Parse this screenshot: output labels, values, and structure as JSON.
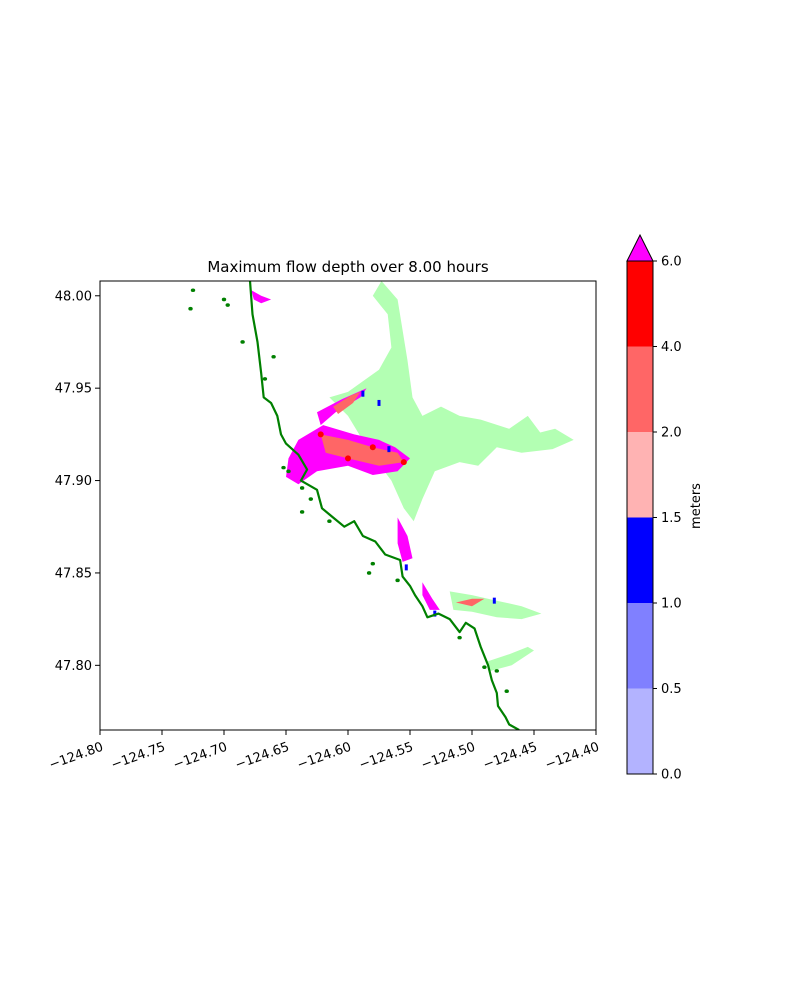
{
  "chart_data": {
    "type": "heatmap",
    "title": "Maximum flow depth over 8.00 hours",
    "xlabel": "",
    "ylabel": "",
    "xlim": [
      -124.8,
      -124.4
    ],
    "ylim": [
      47.765,
      48.008
    ],
    "xticks": [
      -124.8,
      -124.75,
      -124.7,
      -124.65,
      -124.6,
      -124.55,
      -124.5,
      -124.45,
      -124.4
    ],
    "xtick_labels": [
      "−124.80",
      "−124.75",
      "−124.70",
      "−124.65",
      "−124.60",
      "−124.55",
      "−124.50",
      "−124.45",
      "−124.40"
    ],
    "yticks": [
      47.8,
      47.85,
      47.9,
      47.95,
      48.0
    ],
    "ytick_labels": [
      "47.80",
      "47.85",
      "47.90",
      "47.95",
      "48.00"
    ],
    "grid": false,
    "colorbar": {
      "label": "meters",
      "levels": [
        0.0,
        0.5,
        1.0,
        1.5,
        2.0,
        4.0,
        6.0
      ],
      "level_labels": [
        "0.0",
        "0.5",
        "1.0",
        "1.5",
        "2.0",
        "4.0",
        "6.0"
      ],
      "colors": [
        "#b3b3ff",
        "#8080ff",
        "#0000ff",
        "#ffb3b3",
        "#ff6666",
        "#ff0000"
      ],
      "extend_max_color": "#ff00ff",
      "extend": "max"
    },
    "layer_colors": {
      "dry_land_wet": "#b3ffb3",
      "coastline": "#008000",
      "max_depth": "#ff00ff",
      "mid_depth": "#ff6666",
      "high_depth": "#ff0000",
      "low_depth": "#0000ff"
    },
    "coastline": [
      [
        -124.679,
        48.008
      ],
      [
        -124.677,
        47.99
      ],
      [
        -124.673,
        47.975
      ],
      [
        -124.67,
        47.958
      ],
      [
        -124.668,
        47.945
      ],
      [
        -124.662,
        47.942
      ],
      [
        -124.657,
        47.935
      ],
      [
        -124.654,
        47.925
      ],
      [
        -124.65,
        47.92
      ],
      [
        -124.64,
        47.914
      ],
      [
        -124.633,
        47.906
      ],
      [
        -124.638,
        47.9
      ],
      [
        -124.625,
        47.895
      ],
      [
        -124.621,
        47.885
      ],
      [
        -124.612,
        47.88
      ],
      [
        -124.603,
        47.875
      ],
      [
        -124.595,
        47.878
      ],
      [
        -124.588,
        47.87
      ],
      [
        -124.578,
        47.867
      ],
      [
        -124.57,
        47.86
      ],
      [
        -124.558,
        47.857
      ],
      [
        -124.556,
        47.848
      ],
      [
        -124.55,
        47.843
      ],
      [
        -124.546,
        47.838
      ],
      [
        -124.54,
        47.832
      ],
      [
        -124.536,
        47.826
      ],
      [
        -124.527,
        47.828
      ],
      [
        -124.518,
        47.825
      ],
      [
        -124.51,
        47.818
      ],
      [
        -124.505,
        47.823
      ],
      [
        -124.498,
        47.82
      ],
      [
        -124.493,
        47.81
      ],
      [
        -124.487,
        47.8
      ],
      [
        -124.484,
        47.792
      ],
      [
        -124.48,
        47.785
      ],
      [
        -124.479,
        47.778
      ],
      [
        -124.473,
        47.772
      ],
      [
        -124.47,
        47.768
      ],
      [
        -124.462,
        47.765
      ]
    ],
    "wet_region": [
      [
        -124.573,
        48.008
      ],
      [
        -124.56,
        47.998
      ],
      [
        -124.552,
        47.965
      ],
      [
        -124.548,
        47.945
      ],
      [
        -124.54,
        47.935
      ],
      [
        -124.525,
        47.94
      ],
      [
        -124.51,
        47.935
      ],
      [
        -124.493,
        47.933
      ],
      [
        -124.47,
        47.928
      ],
      [
        -124.455,
        47.935
      ],
      [
        -124.445,
        47.926
      ],
      [
        -124.433,
        47.928
      ],
      [
        -124.418,
        47.922
      ],
      [
        -124.435,
        47.917
      ],
      [
        -124.46,
        47.915
      ],
      [
        -124.48,
        47.918
      ],
      [
        -124.495,
        47.908
      ],
      [
        -124.51,
        47.91
      ],
      [
        -124.53,
        47.905
      ],
      [
        -124.54,
        47.89
      ],
      [
        -124.547,
        47.878
      ],
      [
        -124.555,
        47.885
      ],
      [
        -124.565,
        47.9
      ],
      [
        -124.582,
        47.915
      ],
      [
        -124.6,
        47.935
      ],
      [
        -124.615,
        47.945
      ],
      [
        -124.6,
        47.948
      ],
      [
        -124.575,
        47.96
      ],
      [
        -124.565,
        47.972
      ],
      [
        -124.568,
        47.99
      ],
      [
        -124.58,
        48.0
      ]
    ],
    "wet_lower_1": [
      [
        -124.518,
        47.84
      ],
      [
        -124.5,
        47.838
      ],
      [
        -124.48,
        47.835
      ],
      [
        -124.46,
        47.832
      ],
      [
        -124.444,
        47.828
      ],
      [
        -124.46,
        47.825
      ],
      [
        -124.48,
        47.826
      ],
      [
        -124.5,
        47.829
      ],
      [
        -124.515,
        47.83
      ]
    ],
    "wet_lower_2": [
      [
        -124.488,
        47.802
      ],
      [
        -124.47,
        47.806
      ],
      [
        -124.455,
        47.81
      ],
      [
        -124.45,
        47.808
      ],
      [
        -124.468,
        47.8
      ],
      [
        -124.485,
        47.797
      ]
    ],
    "max_region_1": [
      [
        -124.64,
        47.922
      ],
      [
        -124.62,
        47.93
      ],
      [
        -124.595,
        47.925
      ],
      [
        -124.575,
        47.922
      ],
      [
        -124.562,
        47.918
      ],
      [
        -124.55,
        47.912
      ],
      [
        -124.56,
        47.905
      ],
      [
        -124.58,
        47.903
      ],
      [
        -124.6,
        47.908
      ],
      [
        -124.625,
        47.905
      ],
      [
        -124.64,
        47.898
      ],
      [
        -124.65,
        47.902
      ],
      [
        -124.648,
        47.912
      ]
    ],
    "max_region_2": [
      [
        -124.625,
        47.937
      ],
      [
        -124.605,
        47.944
      ],
      [
        -124.585,
        47.95
      ],
      [
        -124.59,
        47.945
      ],
      [
        -124.61,
        47.937
      ],
      [
        -124.622,
        47.93
      ]
    ],
    "max_region_3": [
      [
        -124.56,
        47.88
      ],
      [
        -124.552,
        47.87
      ],
      [
        -124.548,
        47.858
      ],
      [
        -124.556,
        47.856
      ],
      [
        -124.56,
        47.866
      ]
    ],
    "max_region_4": [
      [
        -124.54,
        47.845
      ],
      [
        -124.532,
        47.836
      ],
      [
        -124.526,
        47.83
      ],
      [
        -124.534,
        47.83
      ],
      [
        -124.54,
        47.838
      ]
    ],
    "max_region_5": [
      [
        -124.678,
        48.003
      ],
      [
        -124.67,
        48.0
      ],
      [
        -124.662,
        47.998
      ],
      [
        -124.67,
        47.996
      ],
      [
        -124.676,
        47.998
      ]
    ],
    "red_region_1": [
      [
        -124.622,
        47.925
      ],
      [
        -124.6,
        47.922
      ],
      [
        -124.58,
        47.918
      ],
      [
        -124.56,
        47.915
      ],
      [
        -124.555,
        47.91
      ],
      [
        -124.575,
        47.908
      ],
      [
        -124.6,
        47.912
      ],
      [
        -124.618,
        47.915
      ]
    ],
    "red_region_2": [
      [
        -124.612,
        47.94
      ],
      [
        -124.598,
        47.946
      ],
      [
        -124.59,
        47.948
      ],
      [
        -124.596,
        47.942
      ],
      [
        -124.608,
        47.936
      ]
    ],
    "red_region_3": [
      [
        -124.513,
        47.834
      ],
      [
        -124.5,
        47.836
      ],
      [
        -124.49,
        47.836
      ],
      [
        -124.5,
        47.832
      ]
    ],
    "blue_bits": [
      [
        -124.588,
        47.947
      ],
      [
        -124.575,
        47.942
      ],
      [
        -124.567,
        47.917
      ],
      [
        -124.553,
        47.853
      ],
      [
        -124.53,
        47.828
      ],
      [
        -124.482,
        47.835
      ]
    ],
    "islets": [
      [
        -124.725,
        48.003
      ],
      [
        -124.727,
        47.993
      ],
      [
        -124.7,
        47.998
      ],
      [
        -124.697,
        47.995
      ],
      [
        -124.685,
        47.975
      ],
      [
        -124.66,
        47.967
      ],
      [
        -124.667,
        47.955
      ],
      [
        -124.637,
        47.896
      ],
      [
        -124.648,
        47.905
      ],
      [
        -124.652,
        47.907
      ],
      [
        -124.63,
        47.89
      ],
      [
        -124.637,
        47.883
      ],
      [
        -124.615,
        47.878
      ],
      [
        -124.58,
        47.855
      ],
      [
        -124.583,
        47.85
      ],
      [
        -124.56,
        47.846
      ],
      [
        -124.49,
        47.799
      ],
      [
        -124.48,
        47.797
      ],
      [
        -124.472,
        47.786
      ],
      [
        -124.51,
        47.815
      ]
    ]
  }
}
